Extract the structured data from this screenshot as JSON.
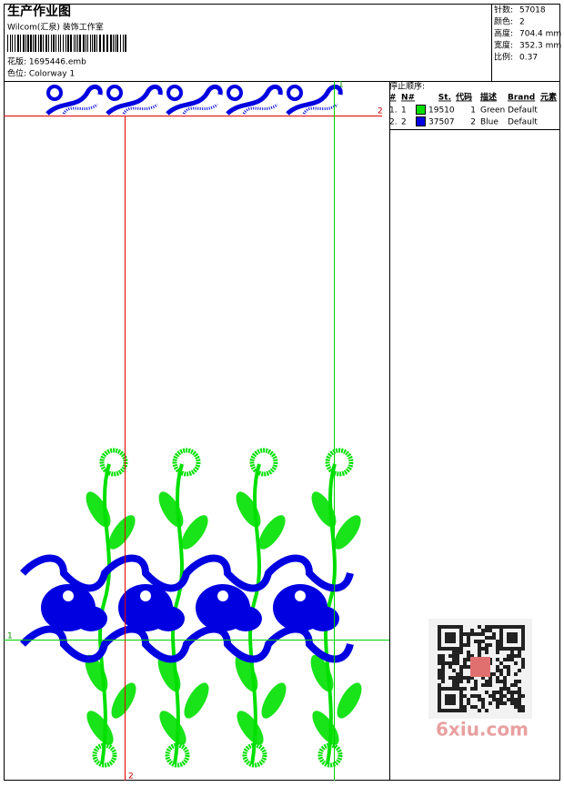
{
  "header": {
    "title": "生产作业图",
    "studio": "Wilcom(汇泉) 装饰工作室",
    "design_file": "花版: 1695446.emb",
    "colorway": "色位: Colorway 1"
  },
  "info": [
    {
      "label": "针数:",
      "value": "57018"
    },
    {
      "label": "颜色:",
      "value": "2"
    },
    {
      "label": "高度:",
      "value": "704.4 mm"
    },
    {
      "label": "宽度:",
      "value": "352.3 mm"
    },
    {
      "label": "比例:",
      "value": "0.37"
    }
  ],
  "stop_sequence": {
    "title": "停止顺序:",
    "columns": [
      "#",
      "N#",
      "St.",
      "代码",
      "描述",
      "Brand",
      "元素"
    ],
    "rows": [
      {
        "index": "1.",
        "n": 1,
        "color": "#00e000",
        "stitches": 19510,
        "code": 1,
        "description": "Green",
        "brand": "Default"
      },
      {
        "index": "2.",
        "n": 2,
        "color": "#0000e0",
        "stitches": 37507,
        "code": 2,
        "description": "Blue",
        "brand": "Default"
      }
    ]
  },
  "guides": {
    "top_horizontal": "2",
    "right_vertical": "1",
    "left_vertical": "2",
    "bottom_horizontal": "1"
  },
  "watermark": "6xiu.com"
}
